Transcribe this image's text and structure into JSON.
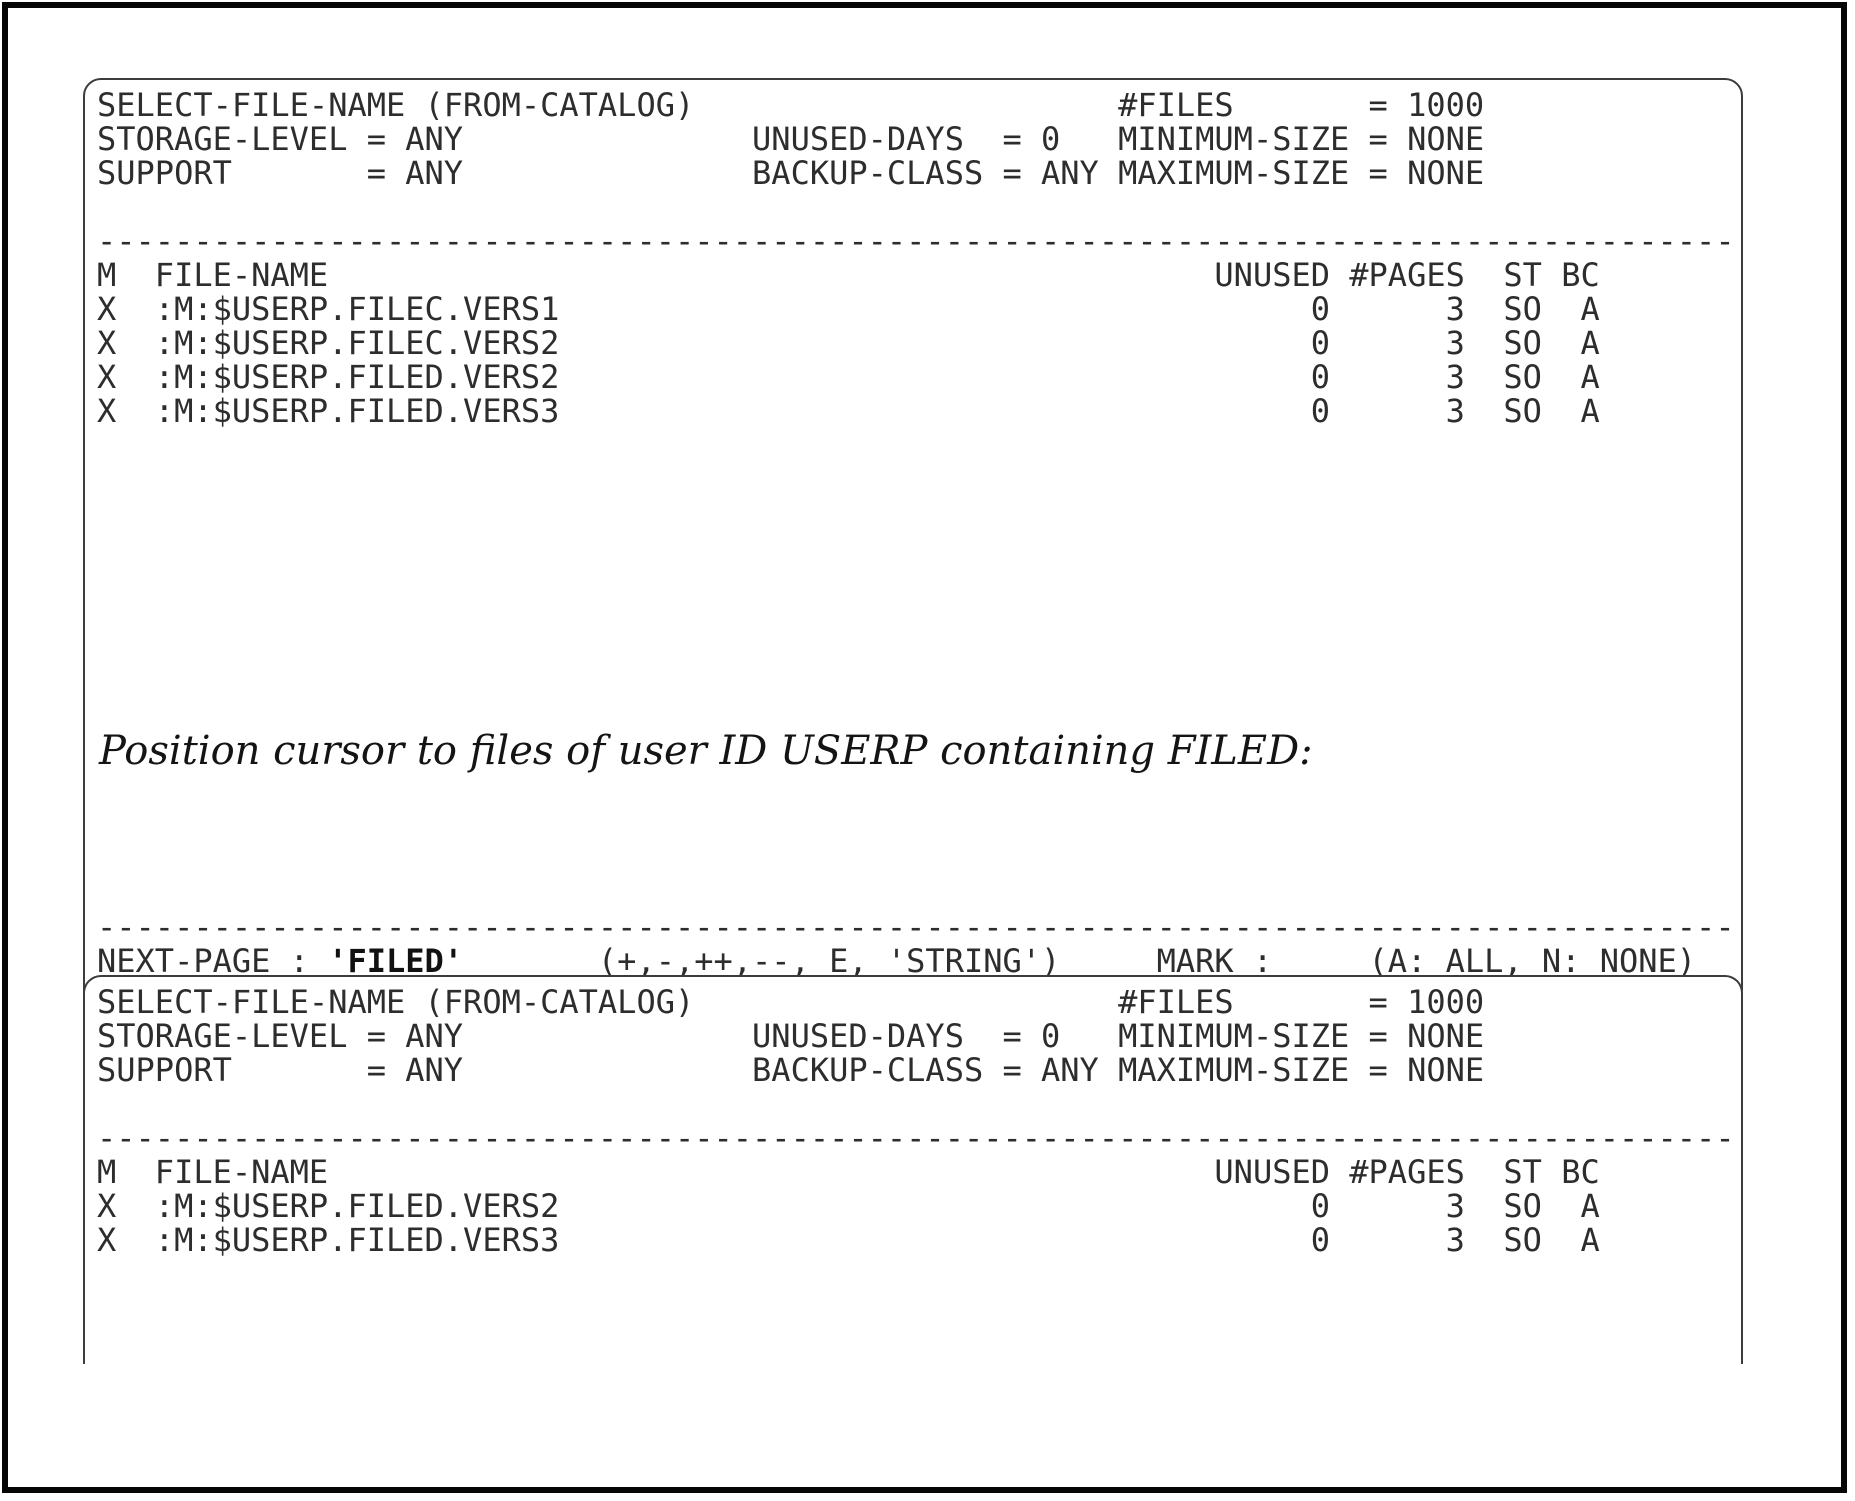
{
  "figure": {
    "note": "Position cursor to files of user ID USERP containing FILED:"
  },
  "mask_params": [
    {
      "label": "SELECT-FILE-NAME (FROM-CATALOG)",
      "value": ""
    },
    {
      "label": "#FILES",
      "value": "1000"
    },
    {
      "label": "STORAGE-LEVEL",
      "value": "ANY"
    },
    {
      "label": "UNUSED-DAYS",
      "value": "0"
    },
    {
      "label": "MINIMUM-SIZE",
      "value": "NONE"
    },
    {
      "label": "SUPPORT",
      "value": "ANY"
    },
    {
      "label": "BACKUP-CLASS",
      "value": "ANY"
    },
    {
      "label": "MAXIMUM-SIZE",
      "value": "NONE"
    }
  ],
  "screen1": {
    "lines": [
      "SELECT-FILE-NAME (FROM-CATALOG)                      #FILES       = 1000",
      "STORAGE-LEVEL = ANY               UNUSED-DAYS  = 0   MINIMUM-SIZE = NONE",
      "SUPPORT       = ANY               BACKUP-CLASS = ANY MAXIMUM-SIZE = NONE",
      "",
      "-------------------------------------------------------------------------------------",
      "M  FILE-NAME                                              UNUSED #PAGES  ST BC",
      "X  :M:$USERP.FILEC.VERS1                                       0      3  SO  A",
      "X  :M:$USERP.FILEC.VERS2                                       0      3  SO  A",
      "X  :M:$USERP.FILED.VERS2                                       0      3  SO  A",
      "X  :M:$USERP.FILED.VERS3                                       0      3  SO  A"
    ],
    "table": {
      "columns": [
        "M",
        "FILE-NAME",
        "UNUSED",
        "#PAGES",
        "ST",
        "BC"
      ],
      "rows": [
        [
          "X",
          ":M:$USERP.FILEC.VERS1",
          "0",
          "3",
          "SO",
          "A"
        ],
        [
          "X",
          ":M:$USERP.FILEC.VERS2",
          "0",
          "3",
          "SO",
          "A"
        ],
        [
          "X",
          ":M:$USERP.FILED.VERS2",
          "0",
          "3",
          "SO",
          "A"
        ],
        [
          "X",
          ":M:$USERP.FILED.VERS3",
          "0",
          "3",
          "SO",
          "A"
        ]
      ]
    },
    "footer": {
      "separator": "-------------------------------------------------------------------------------------",
      "prompt": "NEXT-PAGE : ",
      "input_value": "'FILED'",
      "rest": "       (+,-,++,--, E, 'STRING')     MARK :     (A: ALL, N: NONE)"
    }
  },
  "screen2": {
    "lines": [
      "SELECT-FILE-NAME (FROM-CATALOG)                      #FILES       = 1000",
      "STORAGE-LEVEL = ANY               UNUSED-DAYS  = 0   MINIMUM-SIZE = NONE",
      "SUPPORT       = ANY               BACKUP-CLASS = ANY MAXIMUM-SIZE = NONE",
      "",
      "-------------------------------------------------------------------------------------",
      "M  FILE-NAME                                              UNUSED #PAGES  ST BC",
      "X  :M:$USERP.FILED.VERS2                                       0      3  SO  A",
      "X  :M:$USERP.FILED.VERS3                                       0      3  SO  A"
    ],
    "table": {
      "columns": [
        "M",
        "FILE-NAME",
        "UNUSED",
        "#PAGES",
        "ST",
        "BC"
      ],
      "rows": [
        [
          "X",
          ":M:$USERP.FILED.VERS2",
          "0",
          "3",
          "SO",
          "A"
        ],
        [
          "X",
          ":M:$USERP.FILED.VERS3",
          "0",
          "3",
          "SO",
          "A"
        ]
      ]
    }
  }
}
